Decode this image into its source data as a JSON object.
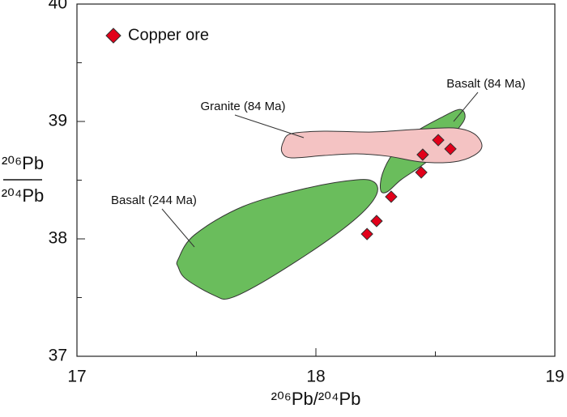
{
  "chart_data": {
    "type": "scatter",
    "x_label": "²⁰⁶Pb/²⁰⁴Pb",
    "y_label_numerator": "²⁰⁶Pb",
    "y_label_denominator": "²⁰⁴Pb",
    "xlim": [
      17,
      19
    ],
    "ylim": [
      37,
      40
    ],
    "xticks": [
      17,
      18,
      19
    ],
    "yticks": [
      37,
      38,
      39,
      40
    ],
    "minor_xticks": [
      17.5,
      18.5
    ],
    "minor_yticks": [
      37.5,
      38.5,
      39.5
    ],
    "legend": "top-left",
    "regions": [
      {
        "name": "Basalt (244 Ma)",
        "color": "#6abd5c",
        "x": [
          17.424,
          17.492,
          17.695,
          17.966,
          18.169,
          18.244,
          18.254,
          18.186,
          18.034,
          17.797,
          17.644,
          17.576,
          17.458,
          17.424
        ],
        "y": [
          37.828,
          38.034,
          38.276,
          38.434,
          38.503,
          38.483,
          38.379,
          38.207,
          37.966,
          37.655,
          37.497,
          37.517,
          37.655,
          37.759
        ]
      },
      {
        "name": "Basalt (84 Ma)",
        "color": "#6abd5c",
        "x": [
          18.271,
          18.278,
          18.322,
          18.407,
          18.525,
          18.603,
          18.624,
          18.593,
          18.525,
          18.441,
          18.356,
          18.298
        ],
        "y": [
          38.414,
          38.552,
          38.724,
          38.897,
          39.034,
          39.103,
          39.034,
          38.931,
          38.759,
          38.621,
          38.503,
          38.4
        ]
      },
      {
        "name": "Granite (84 Ma)",
        "color": "#f4c3c3",
        "x": [
          17.864,
          17.898,
          18.034,
          18.237,
          18.407,
          18.576,
          18.661,
          18.695,
          18.661,
          18.576,
          18.441,
          18.305,
          18.169,
          18.034,
          17.898,
          17.858
        ],
        "y": [
          38.828,
          38.897,
          38.917,
          38.91,
          38.931,
          38.945,
          38.897,
          38.793,
          38.71,
          38.655,
          38.655,
          38.703,
          38.724,
          38.71,
          38.69,
          38.738
        ]
      }
    ],
    "series": [
      {
        "name": "Copper ore",
        "color": "#e2001a",
        "x": [
          18.214,
          18.254,
          18.315,
          18.441,
          18.447,
          18.512,
          18.563
        ],
        "values": [
          38.041,
          38.152,
          38.359,
          38.566,
          38.717,
          38.841,
          38.766
        ]
      }
    ]
  }
}
